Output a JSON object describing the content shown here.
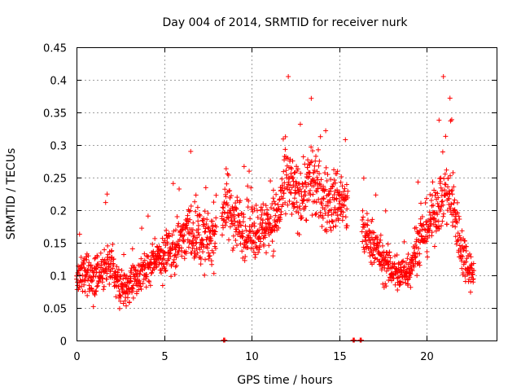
{
  "chart_data": {
    "type": "scatter",
    "title": "Day 004 of 2014, SRMTID for receiver nurk",
    "xlabel": "GPS time / hours",
    "ylabel": "SRMTID / TECUs",
    "xlim": [
      0,
      24
    ],
    "ylim": [
      0,
      0.45
    ],
    "xticks": [
      0,
      5,
      10,
      15,
      20
    ],
    "yticks": [
      0,
      0.05,
      0.1,
      0.15,
      0.2,
      0.25,
      0.3,
      0.35,
      0.4,
      0.45
    ],
    "ytick_labels": [
      "0",
      "0.05",
      "0.1",
      "0.15",
      "0.2",
      "0.25",
      "0.3",
      "0.35",
      "0.4",
      "0.45"
    ],
    "grid": true,
    "marker": "+",
    "marker_color": "#ff0000",
    "series": [
      {
        "name": "SRMTID",
        "profile": [
          [
            0.0,
            0.1,
            0.03
          ],
          [
            0.5,
            0.11,
            0.035
          ],
          [
            1.0,
            0.09,
            0.03
          ],
          [
            1.5,
            0.11,
            0.035
          ],
          [
            2.0,
            0.12,
            0.035
          ],
          [
            2.5,
            0.08,
            0.03
          ],
          [
            3.0,
            0.085,
            0.03
          ],
          [
            3.5,
            0.1,
            0.025
          ],
          [
            4.0,
            0.11,
            0.025
          ],
          [
            4.5,
            0.125,
            0.03
          ],
          [
            5.0,
            0.13,
            0.035
          ],
          [
            5.5,
            0.14,
            0.04
          ],
          [
            6.0,
            0.16,
            0.04
          ],
          [
            6.5,
            0.17,
            0.045
          ],
          [
            7.0,
            0.16,
            0.045
          ],
          [
            7.5,
            0.15,
            0.045
          ],
          [
            8.0,
            0.17,
            0.045
          ],
          [
            8.5,
            0.21,
            0.05
          ],
          [
            9.0,
            0.19,
            0.05
          ],
          [
            9.5,
            0.17,
            0.04
          ],
          [
            10.0,
            0.17,
            0.045
          ],
          [
            10.5,
            0.17,
            0.04
          ],
          [
            11.0,
            0.18,
            0.045
          ],
          [
            11.5,
            0.19,
            0.045
          ],
          [
            12.0,
            0.25,
            0.06
          ],
          [
            12.5,
            0.22,
            0.05
          ],
          [
            13.0,
            0.23,
            0.05
          ],
          [
            13.5,
            0.25,
            0.06
          ],
          [
            14.0,
            0.22,
            0.05
          ],
          [
            14.5,
            0.21,
            0.05
          ],
          [
            15.0,
            0.22,
            0.05
          ],
          [
            15.5,
            0.2,
            0.05
          ],
          [
            16.0,
            0.18,
            0.04
          ],
          [
            16.5,
            0.16,
            0.035
          ],
          [
            17.0,
            0.15,
            0.035
          ],
          [
            17.5,
            0.12,
            0.03
          ],
          [
            18.0,
            0.11,
            0.03
          ],
          [
            18.5,
            0.1,
            0.03
          ],
          [
            19.0,
            0.11,
            0.03
          ],
          [
            19.5,
            0.15,
            0.04
          ],
          [
            20.0,
            0.17,
            0.04
          ],
          [
            20.5,
            0.2,
            0.045
          ],
          [
            21.0,
            0.23,
            0.05
          ],
          [
            21.5,
            0.21,
            0.05
          ],
          [
            22.0,
            0.14,
            0.04
          ],
          [
            22.5,
            0.11,
            0.03
          ],
          [
            22.7,
            0.1,
            0.02
          ]
        ],
        "gaps": [
          [
            8.0,
            8.3
          ],
          [
            15.5,
            16.3
          ]
        ],
        "zero_markers": [
          8.4,
          15.8,
          16.2
        ]
      }
    ]
  }
}
